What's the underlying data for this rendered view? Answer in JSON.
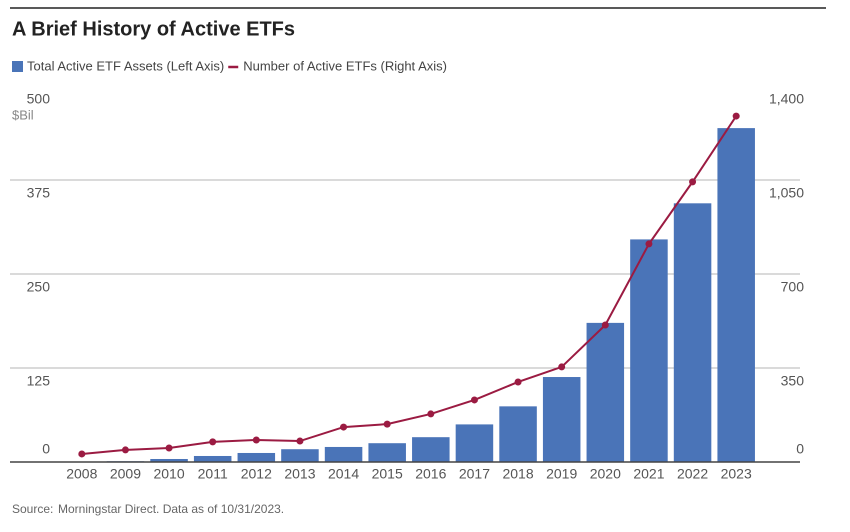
{
  "chart_data": {
    "type": "bar-line",
    "title": "A Brief History of Active ETFs",
    "y_unit": "$Bil",
    "source": "Morningstar Direct. Data as of 10/31/2023.",
    "source_label": "Source:",
    "categories": [
      "2008",
      "2009",
      "2010",
      "2011",
      "2012",
      "2013",
      "2014",
      "2015",
      "2016",
      "2017",
      "2018",
      "2019",
      "2020",
      "2021",
      "2022",
      "2023"
    ],
    "series": [
      {
        "name": "Total Active ETF Assets (Left Axis)",
        "type": "bar",
        "color": "#4a74b8",
        "axis": "y",
        "values": [
          0.5,
          1,
          4,
          8,
          12,
          17,
          20,
          25,
          33,
          50,
          74,
          113,
          185,
          296,
          344,
          444
        ]
      },
      {
        "name": "Number of Active ETFs (Right Axis)",
        "type": "line",
        "color": "#9b1b42",
        "axis": "y2",
        "values": [
          30,
          45,
          52,
          75,
          82,
          78,
          130,
          141,
          179,
          231,
          298,
          354,
          510,
          812,
          1043,
          1288
        ]
      }
    ],
    "ylim": [
      0,
      500
    ],
    "yticks": [
      0,
      125,
      250,
      375,
      500
    ],
    "y2lim": [
      0,
      1400
    ],
    "y2ticks": [
      0,
      350,
      700,
      {
        "value": 1050,
        "label": "1,050"
      },
      {
        "value": 1400,
        "label": "1,400"
      }
    ],
    "grid": true
  }
}
